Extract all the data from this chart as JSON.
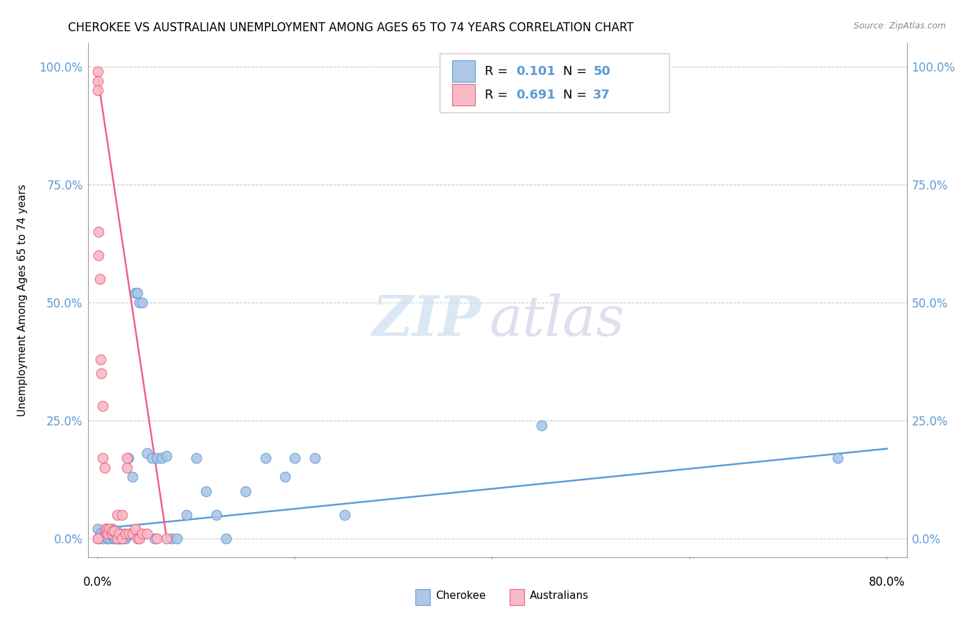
{
  "title": "CHEROKEE VS AUSTRALIAN UNEMPLOYMENT AMONG AGES 65 TO 74 YEARS CORRELATION CHART",
  "source": "Source: ZipAtlas.com",
  "ylabel": "Unemployment Among Ages 65 to 74 years",
  "ytick_labels": [
    "0.0%",
    "25.0%",
    "50.0%",
    "75.0%",
    "100.0%"
  ],
  "ytick_values": [
    0.0,
    0.25,
    0.5,
    0.75,
    1.0
  ],
  "xtick_labels": [
    "0.0%",
    "80.0%"
  ],
  "xtick_values": [
    0.0,
    0.8
  ],
  "xlim": [
    -0.01,
    0.82
  ],
  "ylim": [
    -0.04,
    1.05
  ],
  "cherokee_R": 0.101,
  "cherokee_N": 50,
  "australian_R": 0.691,
  "australian_N": 37,
  "cherokee_color": "#aec6e8",
  "australian_color": "#f9b8c8",
  "cherokee_edge_color": "#5b9bd5",
  "australian_edge_color": "#e8607a",
  "cherokee_line_color": "#5b9bd5",
  "australian_line_color": "#f06080",
  "cherokee_x": [
    0.0,
    0.003,
    0.005,
    0.007,
    0.008,
    0.009,
    0.01,
    0.01,
    0.012,
    0.013,
    0.014,
    0.015,
    0.016,
    0.017,
    0.018,
    0.019,
    0.02,
    0.021,
    0.022,
    0.025,
    0.027,
    0.028,
    0.03,
    0.031,
    0.035,
    0.038,
    0.04,
    0.042,
    0.045,
    0.05,
    0.055,
    0.058,
    0.06,
    0.065,
    0.07,
    0.075,
    0.08,
    0.09,
    0.1,
    0.11,
    0.12,
    0.13,
    0.15,
    0.17,
    0.19,
    0.2,
    0.22,
    0.25,
    0.45,
    0.75
  ],
  "cherokee_y": [
    0.02,
    0.01,
    0.0,
    0.01,
    0.005,
    0.015,
    0.02,
    0.0,
    0.0,
    0.01,
    0.005,
    0.02,
    0.0,
    0.01,
    0.0,
    0.015,
    0.01,
    0.0,
    0.0,
    0.0,
    0.01,
    0.0,
    0.005,
    0.17,
    0.13,
    0.52,
    0.52,
    0.5,
    0.5,
    0.18,
    0.17,
    0.0,
    0.17,
    0.17,
    0.175,
    0.0,
    0.0,
    0.05,
    0.17,
    0.1,
    0.05,
    0.0,
    0.1,
    0.17,
    0.13,
    0.17,
    0.17,
    0.05,
    0.24,
    0.17
  ],
  "australian_x": [
    0.0,
    0.0,
    0.0,
    0.0,
    0.0,
    0.001,
    0.001,
    0.002,
    0.003,
    0.004,
    0.005,
    0.005,
    0.007,
    0.008,
    0.01,
    0.01,
    0.012,
    0.014,
    0.015,
    0.017,
    0.02,
    0.02,
    0.022,
    0.025,
    0.025,
    0.028,
    0.03,
    0.03,
    0.032,
    0.035,
    0.038,
    0.04,
    0.042,
    0.045,
    0.05,
    0.06,
    0.07
  ],
  "australian_y": [
    0.99,
    0.97,
    0.95,
    0.0,
    0.0,
    0.65,
    0.6,
    0.55,
    0.38,
    0.35,
    0.28,
    0.17,
    0.15,
    0.02,
    0.02,
    0.01,
    0.02,
    0.01,
    0.015,
    0.015,
    0.05,
    0.0,
    0.01,
    0.0,
    0.05,
    0.01,
    0.15,
    0.17,
    0.01,
    0.01,
    0.02,
    0.0,
    0.0,
    0.01,
    0.01,
    0.0,
    0.0
  ],
  "cherokee_line_x": [
    0.0,
    0.8
  ],
  "cherokee_line_y": [
    0.02,
    0.19
  ],
  "australian_line_x": [
    0.0,
    0.07
  ],
  "australian_line_y": [
    0.98,
    0.0
  ],
  "watermark_zip_color": "#ccdff0",
  "watermark_atlas_color": "#d8d0e8",
  "background_color": "#ffffff"
}
